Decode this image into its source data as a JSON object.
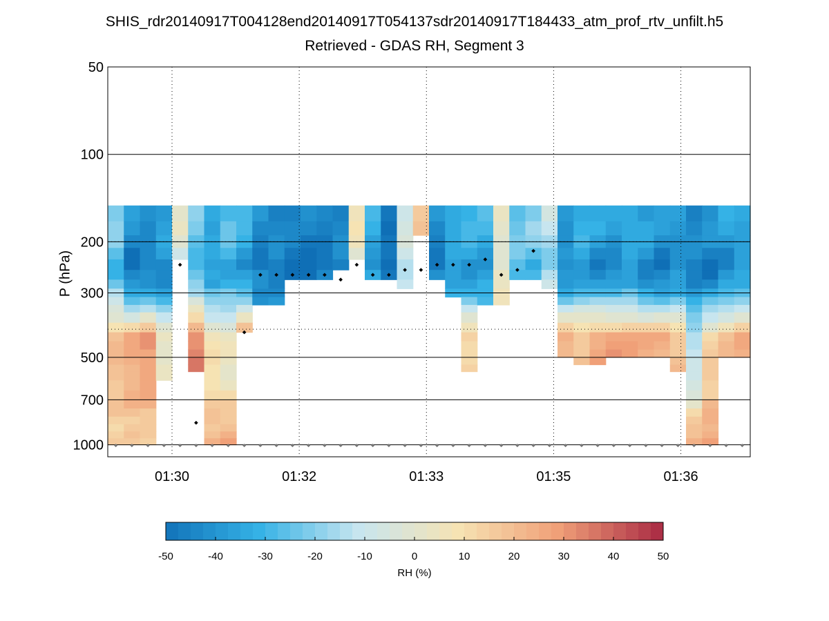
{
  "chart_data": {
    "type": "heatmap",
    "title": "SHIS_rdr20140917T004128end20140917T054137sdr20140917T184433_atm_prof_rtv_unfilt.h5",
    "subtitle": "Retrieved - GDAS RH, Segment 3",
    "ylabel": "P (hPa)",
    "y_scale": "log",
    "ylim": [
      50,
      1100
    ],
    "y_ticks": [
      50,
      100,
      200,
      300,
      500,
      700,
      1000
    ],
    "y_tick_labels": [
      "50",
      "100",
      "200",
      "300",
      "500",
      "700",
      "1000"
    ],
    "x_tick_labels": [
      "01:30",
      "01:32",
      "01:33",
      "01:35",
      "01:36"
    ],
    "grid": true,
    "colorbar": {
      "label": "RH (%)",
      "range": [
        -50,
        50
      ],
      "tick_labels": [
        "-50",
        "-40",
        "-30",
        "-20",
        "-10",
        "0",
        "10",
        "20",
        "30",
        "40",
        "50"
      ],
      "colors": [
        "#0f6fb6",
        "#35b2e6",
        "#c7e5ef",
        "#f6e3b3",
        "#f0a078",
        "#ad3046"
      ]
    },
    "pressure_levels": [
      150,
      170,
      190,
      210,
      230,
      250,
      270,
      290,
      310,
      330,
      350,
      380,
      410,
      440,
      470,
      500,
      530,
      560,
      600,
      650,
      700,
      750,
      800,
      850,
      900,
      950,
      1000
    ],
    "rh_difference_profiles": [
      {
        "top": 150,
        "bottom": 1000,
        "base": -20,
        "mid": 20,
        "low": 15
      },
      {
        "top": 150,
        "bottom": 1000,
        "base": -40,
        "mid": 25,
        "low": 15
      },
      {
        "top": 150,
        "bottom": 1000,
        "base": -38,
        "mid": 30,
        "low": 12
      },
      {
        "top": 150,
        "bottom": 600,
        "base": -35,
        "mid": 5,
        "low": 0
      },
      {
        "top": 150,
        "bottom": 230,
        "base": 0,
        "mid": -10,
        "low": 0
      },
      {
        "top": 150,
        "bottom": 560,
        "base": -20,
        "mid": 35,
        "low": -10
      },
      {
        "top": 150,
        "bottom": 1000,
        "base": -30,
        "mid": 10,
        "low": 25
      },
      {
        "top": 150,
        "bottom": 1000,
        "base": -25,
        "mid": 5,
        "low": 28
      },
      {
        "top": 150,
        "bottom": 410,
        "base": -30,
        "mid": 30,
        "low": 0
      },
      {
        "top": 150,
        "bottom": 330,
        "base": -40,
        "mid": -30,
        "low": 0
      },
      {
        "top": 150,
        "bottom": 330,
        "base": -40,
        "mid": -30,
        "low": 0
      },
      {
        "top": 150,
        "bottom": 270,
        "base": -45,
        "mid": -40,
        "low": 0
      },
      {
        "top": 150,
        "bottom": 270,
        "base": -45,
        "mid": -40,
        "low": 0
      },
      {
        "top": 150,
        "bottom": 270,
        "base": -42,
        "mid": -40,
        "low": 0
      },
      {
        "top": 150,
        "bottom": 250,
        "base": -40,
        "mid": -40,
        "low": 0
      },
      {
        "top": 150,
        "bottom": 230,
        "base": 5,
        "mid": 5,
        "low": 0
      },
      {
        "top": 150,
        "bottom": 270,
        "base": -30,
        "mid": -40,
        "low": 0
      },
      {
        "top": 150,
        "bottom": 270,
        "base": -45,
        "mid": -45,
        "low": 0
      },
      {
        "top": 150,
        "bottom": 290,
        "base": -5,
        "mid": 0,
        "low": 0
      },
      {
        "top": 150,
        "bottom": 200,
        "base": 15,
        "mid": 15,
        "low": 0
      },
      {
        "top": 150,
        "bottom": 270,
        "base": -40,
        "mid": -45,
        "low": 0
      },
      {
        "top": 150,
        "bottom": 310,
        "base": -30,
        "mid": 0,
        "low": 0
      },
      {
        "top": 150,
        "bottom": 560,
        "base": -30,
        "mid": 15,
        "low": 0
      },
      {
        "top": 150,
        "bottom": 330,
        "base": -30,
        "mid": -20,
        "low": 0
      },
      {
        "top": 150,
        "bottom": 330,
        "base": 5,
        "mid": 5,
        "low": 0
      },
      {
        "top": 150,
        "bottom": 270,
        "base": -20,
        "mid": -40,
        "low": 0
      },
      {
        "top": 150,
        "bottom": 270,
        "base": -20,
        "mid": -30,
        "low": 0
      },
      {
        "top": 150,
        "bottom": 290,
        "base": -10,
        "mid": 10,
        "low": 0
      },
      {
        "top": 150,
        "bottom": 500,
        "base": -35,
        "mid": 25,
        "low": 0
      },
      {
        "top": 150,
        "bottom": 530,
        "base": -30,
        "mid": 20,
        "low": 0
      },
      {
        "top": 150,
        "bottom": 530,
        "base": -35,
        "mid": 28,
        "low": 0
      },
      {
        "top": 150,
        "bottom": 500,
        "base": -35,
        "mid": 30,
        "low": 0
      },
      {
        "top": 150,
        "bottom": 500,
        "base": -30,
        "mid": 28,
        "low": 0
      },
      {
        "top": 150,
        "bottom": 500,
        "base": -35,
        "mid": 25,
        "low": 0
      },
      {
        "top": 150,
        "bottom": 500,
        "base": -38,
        "mid": 25,
        "low": 0
      },
      {
        "top": 150,
        "bottom": 560,
        "base": -35,
        "mid": 20,
        "low": 0
      },
      {
        "top": 150,
        "bottom": 1000,
        "base": -40,
        "mid": -10,
        "low": 30
      },
      {
        "top": 150,
        "bottom": 1000,
        "base": -40,
        "mid": 15,
        "low": 30
      },
      {
        "top": 150,
        "bottom": 500,
        "base": -35,
        "mid": 20,
        "low": 0
      },
      {
        "top": 150,
        "bottom": 500,
        "base": -30,
        "mid": 25,
        "low": 0
      }
    ],
    "tropopause_markers_hpa": [
      null,
      null,
      null,
      null,
      240,
      null,
      null,
      null,
      410,
      260,
      260,
      260,
      260,
      260,
      270,
      240,
      260,
      260,
      250,
      250,
      240,
      240,
      240,
      230,
      260,
      250,
      215,
      null,
      null,
      null,
      null,
      null,
      null,
      null,
      null,
      null,
      null,
      null,
      null,
      null
    ],
    "isolated_marker_hpa": 840,
    "surface_marker_hpa": 1000
  }
}
